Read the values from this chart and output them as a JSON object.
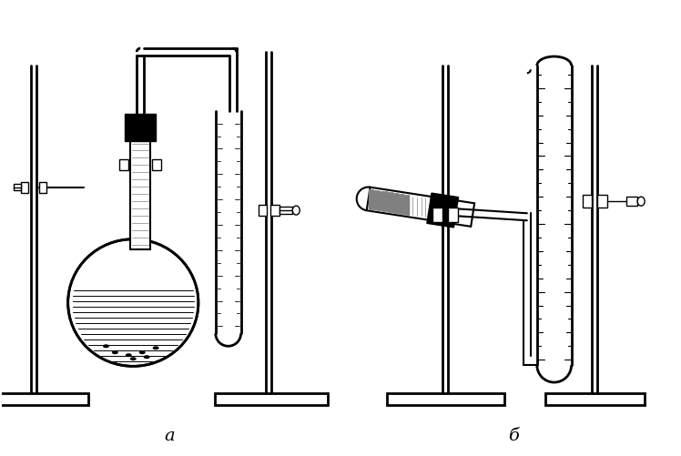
{
  "background_color": "#ffffff",
  "line_color": "#000000",
  "label_a": "a",
  "label_b": "б",
  "label_fontsize": 14,
  "fig_width": 7.48,
  "fig_height": 5.02
}
